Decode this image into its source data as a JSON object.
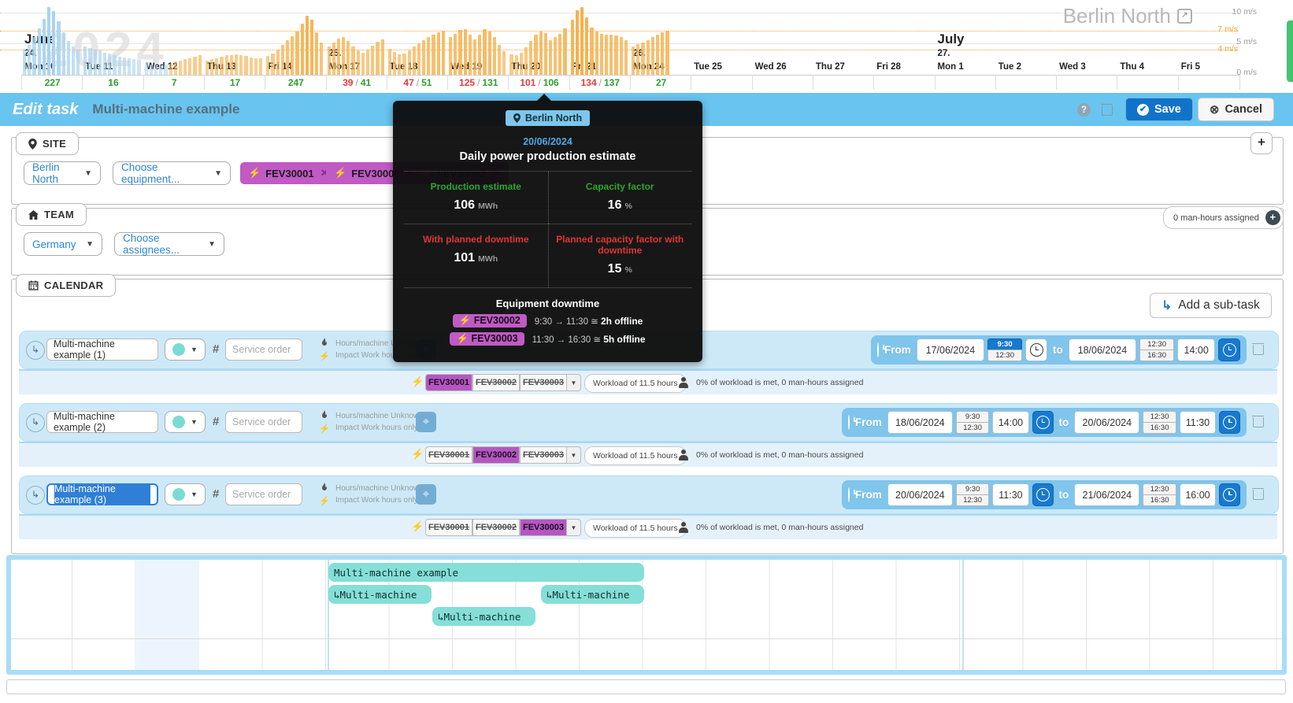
{
  "site_heading": {
    "title": "Berlin North"
  },
  "wind_chart": {
    "watermark": "2024",
    "axis": [
      {
        "label": "10 m/s",
        "tone": "gray"
      },
      {
        "label": "7 m/s",
        "tone": "orange"
      },
      {
        "label": "5 m/s",
        "tone": "gray"
      },
      {
        "label": "4 m/s",
        "tone": "orange"
      },
      {
        "label": "0 m/s",
        "tone": "gray"
      }
    ],
    "chart_data": {
      "type": "bar",
      "unit": "m/s",
      "ylim": [
        0,
        11
      ],
      "threshold_lines_m_s": [
        4,
        7,
        10
      ],
      "legend": "hourly wind speed; blue = measured, orange = forecast; bottom row = daily power production (red = with downtime / green = estimate, MWh)",
      "days": [
        {
          "label": "Mon 10",
          "month": "June",
          "week": "24.",
          "green": "227",
          "kind": "measured",
          "values": [
            4.2,
            4.8,
            6.0,
            7.5,
            9.0,
            10.8,
            10.2,
            8.6,
            6.8,
            5.4,
            4.6,
            4.1
          ]
        },
        {
          "label": "Tue 11",
          "green": "16",
          "kind": "measured",
          "values": [
            4.6,
            4.3,
            4.1,
            3.9,
            3.6,
            3.4,
            3.1,
            2.9,
            2.8,
            2.6,
            2.5,
            2.4
          ]
        },
        {
          "label": "Wed 12",
          "green": "7",
          "kind": "mixed",
          "blue_count": 5,
          "values": [
            1.9,
            1.7,
            1.5,
            1.5,
            1.6,
            1.8,
            2.1,
            2.3,
            2.5,
            2.7,
            2.9,
            3.1
          ]
        },
        {
          "label": "Thu 13",
          "green": "17",
          "kind": "forecast",
          "values": [
            2.3,
            2.5,
            2.7,
            2.9,
            3.1,
            3.2,
            3.3,
            3.2,
            3.0,
            2.8,
            2.7,
            2.6
          ]
        },
        {
          "label": "Fri 14",
          "green": "247",
          "kind": "forecast",
          "values": [
            3.0,
            3.4,
            4.0,
            4.8,
            5.6,
            6.2,
            7.0,
            8.2,
            9.5,
            8.8,
            6.8,
            5.2
          ]
        },
        {
          "label": "Mon 17",
          "week": "25.",
          "red": "39",
          "green": "41",
          "kind": "forecast",
          "values": [
            4.6,
            5.2,
            5.8,
            6.0,
            5.4,
            4.6,
            3.9,
            3.6,
            4.1,
            4.7,
            5.3,
            5.7
          ]
        },
        {
          "label": "Tue 18",
          "red": "47",
          "green": "51",
          "kind": "forecast",
          "values": [
            4.2,
            3.7,
            3.3,
            3.4,
            3.9,
            4.5,
            5.0,
            5.5,
            6.0,
            6.4,
            6.8,
            7.1
          ]
        },
        {
          "label": "Wed 19",
          "red": "125",
          "green": "131",
          "kind": "forecast",
          "values": [
            6.0,
            6.6,
            7.2,
            7.3,
            6.4,
            5.7,
            6.5,
            7.3,
            7.0,
            6.0,
            4.8,
            3.8
          ]
        },
        {
          "label": "Thu 20",
          "red": "101",
          "green": "106",
          "kind": "forecast",
          "values": [
            3.3,
            3.1,
            3.6,
            4.4,
            5.4,
            6.4,
            7.0,
            6.7,
            5.6,
            6.1,
            6.6,
            7.4
          ]
        },
        {
          "label": "Fri 21",
          "red": "134",
          "green": "137",
          "kind": "forecast",
          "values": [
            8.8,
            10.4,
            10.9,
            9.2,
            7.6,
            6.9,
            6.6,
            6.4,
            6.5,
            6.3,
            6.0,
            5.6
          ]
        },
        {
          "label": "Mon 24",
          "week": "26.",
          "green": "27",
          "kind": "forecast",
          "values": [
            4.6,
            4.9,
            5.2,
            5.6,
            6.0,
            6.4,
            6.8,
            7.1
          ]
        },
        {
          "label": "Tue 25"
        },
        {
          "label": "Wed 26"
        },
        {
          "label": "Thu 27"
        },
        {
          "label": "Fri 28"
        },
        {
          "label": "Mon 1",
          "month": "July",
          "week": "27."
        },
        {
          "label": "Tue 2"
        },
        {
          "label": "Wed 3"
        },
        {
          "label": "Thu 4"
        },
        {
          "label": "Fri 5"
        }
      ]
    }
  },
  "edit_bar": {
    "title": "Edit task",
    "task_name": "Multi-machine example",
    "help": "?",
    "save_label": "Save",
    "cancel_label": "Cancel"
  },
  "site": {
    "tab_label": "SITE",
    "site_value": "Berlin North",
    "equipment_placeholder": "Choose equipment...",
    "tags": [
      {
        "label": "FEV30001"
      },
      {
        "label": "FEV30002"
      },
      {
        "label": "FEV30003"
      }
    ]
  },
  "team": {
    "tab_label": "TEAM",
    "team_value": "Germany",
    "assignees_placeholder": "Choose assignees...",
    "man_hours_label": "0 man-hours assigned"
  },
  "calendar": {
    "tab_label": "CALENDAR",
    "add_subtask_label": "Add a sub-task",
    "labels": {
      "from": "From",
      "to": "to",
      "hours": "Hours/machine Unknown",
      "impact": "Impact Work hours only",
      "service_placeholder": "Service order",
      "workload": "Workload of 11.5 hours",
      "progress": "0% of workload is met, 0 man-hours assigned"
    },
    "equipment": [
      "FEV30001",
      "FEV30002",
      "FEV30003"
    ],
    "rows": [
      {
        "name": "Multi-machine example (1)",
        "from_date": "17/06/2024",
        "from_suggest": [
          "9:30",
          "12:30"
        ],
        "from_active": "9:30",
        "from_time": null,
        "to_date": "18/06/2024",
        "to_suggest": [
          "12:30",
          "16:30"
        ],
        "to_time": "14:00",
        "selected_equipment": "FEV30001",
        "focused": false
      },
      {
        "name": "Multi-machine example (2)",
        "from_date": "18/06/2024",
        "from_suggest": [
          "9:30",
          "12:30"
        ],
        "from_active": null,
        "from_time": "14:00",
        "to_date": "20/06/2024",
        "to_suggest": [
          "12:30",
          "16:30"
        ],
        "to_time": "11:30",
        "selected_equipment": "FEV30002",
        "focused": false
      },
      {
        "name": "Multi-machine example (3)",
        "from_date": "20/06/2024",
        "from_suggest": [
          "9:30",
          "12:30"
        ],
        "from_active": null,
        "from_time": "11:30",
        "to_date": "21/06/2024",
        "to_suggest": [
          "12:30",
          "16:30"
        ],
        "to_time": "16:00",
        "selected_equipment": "FEV30003",
        "focused": true
      }
    ]
  },
  "tooltip": {
    "site": "Berlin North",
    "date": "20/06/2024",
    "title": "Daily power production estimate",
    "stats": [
      {
        "label": "Production estimate",
        "value": "106",
        "unit": "MWh",
        "tone": "green"
      },
      {
        "label": "Capacity factor",
        "value": "16",
        "unit": "%",
        "tone": "green"
      },
      {
        "label": "With planned downtime",
        "value": "101",
        "unit": "MWh",
        "tone": "red"
      },
      {
        "label": "Planned capacity factor with downtime",
        "value": "15",
        "unit": "%",
        "tone": "red"
      }
    ],
    "downtime_title": "Equipment downtime",
    "downtimes": [
      {
        "tag": "FEV30002",
        "range": "9:30 → 11:30 ≅",
        "duration": "2h offline"
      },
      {
        "tag": "FEV30003",
        "range": "11:30 → 16:30 ≅",
        "duration": "5h offline"
      }
    ]
  },
  "gantt": {
    "bars": [
      {
        "label": "Multi-machine example"
      },
      {
        "label": "↳Multi-machine"
      },
      {
        "label": "↳Multi-machine"
      },
      {
        "label": "↳Multi-machine"
      }
    ]
  }
}
